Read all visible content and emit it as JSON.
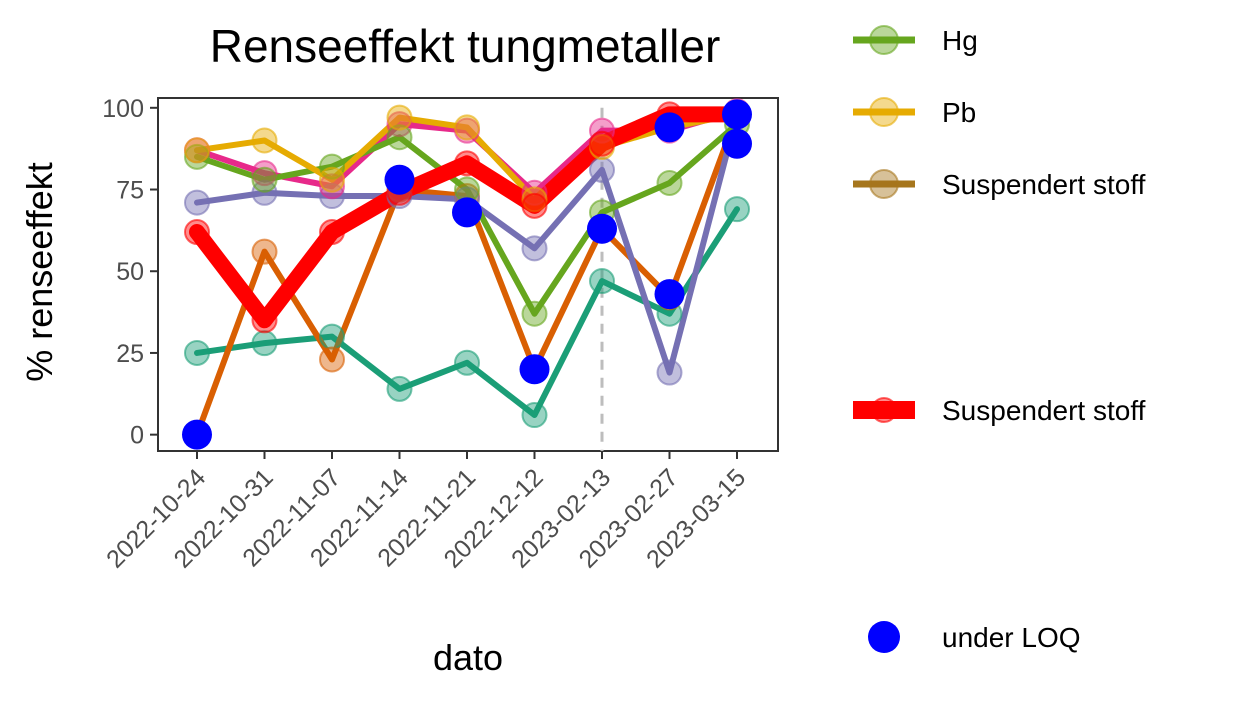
{
  "chart_data": {
    "type": "line",
    "title": "Renseeffekt tungmetaller",
    "xlabel": "dato",
    "ylabel": "% renseeffekt",
    "ylim": [
      -5,
      103
    ],
    "yticks": [
      0,
      25,
      50,
      75,
      100
    ],
    "grid": false,
    "legend_position": "right",
    "x": [
      "2022-10-24",
      "2022-10-31",
      "2022-11-07",
      "2022-11-14",
      "2022-11-21",
      "2022-12-12",
      "2023-02-13",
      "2023-02-27",
      "2023-03-15"
    ],
    "reference_line_x": "2023-02-13",
    "series": [
      {
        "color": "#1b9e77",
        "width": 6,
        "values": [
          25,
          28,
          30,
          14,
          22,
          6,
          47,
          37,
          69
        ]
      },
      {
        "color": "#d95f02",
        "width": 6,
        "values": [
          0,
          56,
          23,
          75,
          73,
          20,
          63,
          42,
          98
        ]
      },
      {
        "color": "#7570b3",
        "width": 6,
        "values": [
          71,
          74,
          73,
          73,
          72,
          57,
          81,
          19,
          98
        ]
      },
      {
        "color": "#e7298a",
        "width": 6,
        "values": [
          87,
          80,
          76,
          95,
          93,
          74,
          93,
          93,
          99
        ]
      },
      {
        "name": "Hg",
        "color": "#66a61e",
        "width": 6,
        "values": [
          85,
          78,
          82,
          91,
          75,
          37,
          68,
          77,
          95
        ]
      },
      {
        "name": "Pb",
        "color": "#e6ab02",
        "width": 6,
        "values": [
          87,
          90,
          78,
          97,
          94,
          72,
          88,
          94,
          98
        ]
      },
      {
        "name": "Suspendert stoff",
        "color": "#ff0000",
        "width": 16,
        "values": [
          62,
          35,
          62,
          74,
          83,
          70,
          89,
          98,
          98
        ]
      }
    ],
    "under_loq": {
      "label": "under LOQ",
      "color": "#0000ff",
      "points": [
        {
          "x": "2022-10-24",
          "y": 0
        },
        {
          "x": "2022-11-14",
          "y": 78
        },
        {
          "x": "2022-11-21",
          "y": 68
        },
        {
          "x": "2022-12-12",
          "y": 20
        },
        {
          "x": "2023-02-13",
          "y": 63
        },
        {
          "x": "2023-02-27",
          "y": 43
        },
        {
          "x": "2023-02-27",
          "y": 94
        },
        {
          "x": "2023-03-15",
          "y": 89
        },
        {
          "x": "2023-03-15",
          "y": 98
        }
      ]
    },
    "legend": [
      {
        "label": "Hg",
        "color": "#66a61e",
        "style": "line-point"
      },
      {
        "label": "Pb",
        "color": "#e6ab02",
        "style": "line-point"
      },
      {
        "label": "Suspendert stoff",
        "color": "#a6761d",
        "style": "line-point"
      },
      {
        "label": "Suspendert stoff",
        "color": "#ff0000",
        "style": "thick-line"
      },
      {
        "label": "under LOQ",
        "color": "#0000ff",
        "style": "point"
      }
    ]
  }
}
